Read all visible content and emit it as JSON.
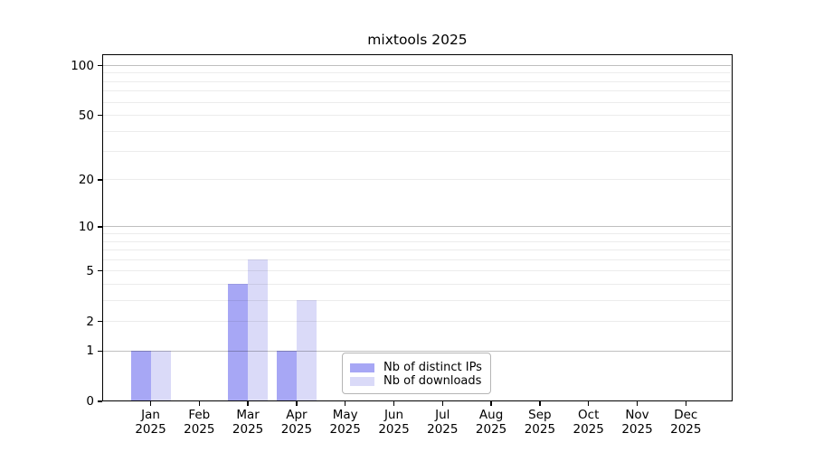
{
  "chart_data": {
    "type": "bar",
    "title": "mixtools 2025",
    "categories": [
      "Jan",
      "Feb",
      "Mar",
      "Apr",
      "May",
      "Jun",
      "Jul",
      "Aug",
      "Sep",
      "Oct",
      "Nov",
      "Dec"
    ],
    "category_year": "2025",
    "series": [
      {
        "name": "Nb of distinct IPs",
        "color": "#a7a7f5",
        "values": [
          1,
          0,
          4,
          1,
          0,
          0,
          0,
          0,
          0,
          0,
          0,
          0
        ]
      },
      {
        "name": "Nb of downloads",
        "color": "#dadaf8",
        "values": [
          1,
          0,
          6,
          3,
          0,
          0,
          0,
          0,
          0,
          0,
          0,
          0
        ]
      }
    ],
    "xlabel": "",
    "ylabel": "",
    "yscale": "log1p",
    "ylim": [
      0,
      117
    ],
    "ytick_values": [
      0,
      1,
      2,
      5,
      10,
      20,
      50,
      100
    ],
    "ytick_labels": [
      "0",
      "1",
      "2",
      "5",
      "10",
      "20",
      "50",
      "100"
    ],
    "minor_grid_values": [
      2,
      3,
      4,
      5,
      6,
      7,
      8,
      9,
      20,
      30,
      40,
      50,
      60,
      70,
      80,
      90
    ],
    "major_grid_values": [
      1,
      10,
      100
    ],
    "grid": true,
    "legend_position": "lower center, inside plot",
    "colors": {
      "background": "#ffffff",
      "spine": "#000000",
      "grid_minor": "#ececec",
      "grid_major": "#bfbfbf",
      "legend_border": "#b5b5b5",
      "text": "#000000"
    }
  }
}
